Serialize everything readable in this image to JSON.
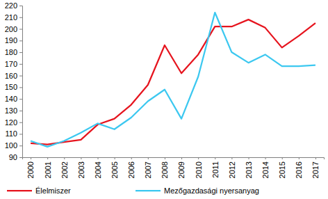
{
  "chart_data": {
    "type": "line",
    "categories": [
      "2000",
      "2001",
      "2002",
      "2003",
      "2004",
      "2005",
      "2006",
      "2007",
      "2008",
      "2009",
      "2010",
      "2011",
      "2012",
      "2013",
      "2014",
      "2015",
      "2016",
      "2017"
    ],
    "series": [
      {
        "name": "Élelmiszer",
        "color": "#e6141e",
        "values": [
          102,
          101,
          103,
          105,
          118,
          123,
          135,
          152,
          186,
          162,
          178,
          202,
          202,
          208,
          201,
          184,
          194,
          205
        ]
      },
      {
        "name": "Mezőgazdasági nyersanyag",
        "color": "#3cc8f0",
        "values": [
          104,
          99,
          104,
          111,
          119,
          114,
          124,
          138,
          148,
          123,
          159,
          214,
          180,
          171,
          178,
          168,
          168,
          169
        ]
      }
    ],
    "ylim": [
      90,
      220
    ],
    "yticks": [
      90,
      100,
      110,
      120,
      130,
      140,
      150,
      160,
      170,
      180,
      190,
      200,
      210,
      220
    ],
    "grid": false,
    "legend": "bottom"
  }
}
